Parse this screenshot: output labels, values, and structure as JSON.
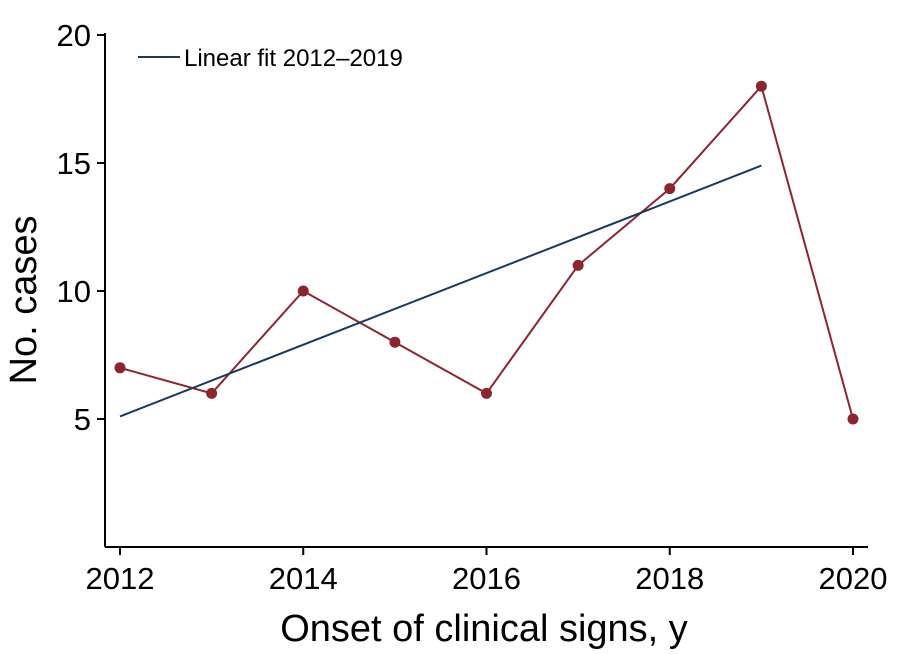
{
  "chart_data": {
    "type": "line",
    "xlabel": "Onset of clinical signs, y",
    "ylabel": "No. cases",
    "xlim": [
      2012,
      2020
    ],
    "ylim": [
      0,
      20
    ],
    "x_ticks": [
      2012,
      2014,
      2016,
      2018,
      2020
    ],
    "y_ticks": [
      5,
      10,
      15,
      20
    ],
    "grid": false,
    "legend_position": "top-left",
    "series": [
      {
        "x": [
          2012,
          2013,
          2014,
          2015,
          2016,
          2017,
          2018,
          2019,
          2020
        ],
        "values": [
          7,
          6,
          10,
          8,
          6,
          11,
          14,
          18,
          5
        ],
        "color": "#8b2631",
        "marker": "circle"
      },
      {
        "name": "Linear fit 2012–2019",
        "x": [
          2012,
          2019
        ],
        "values": [
          5.1,
          14.9
        ],
        "color": "#1a3a5c",
        "marker": "none"
      }
    ]
  }
}
